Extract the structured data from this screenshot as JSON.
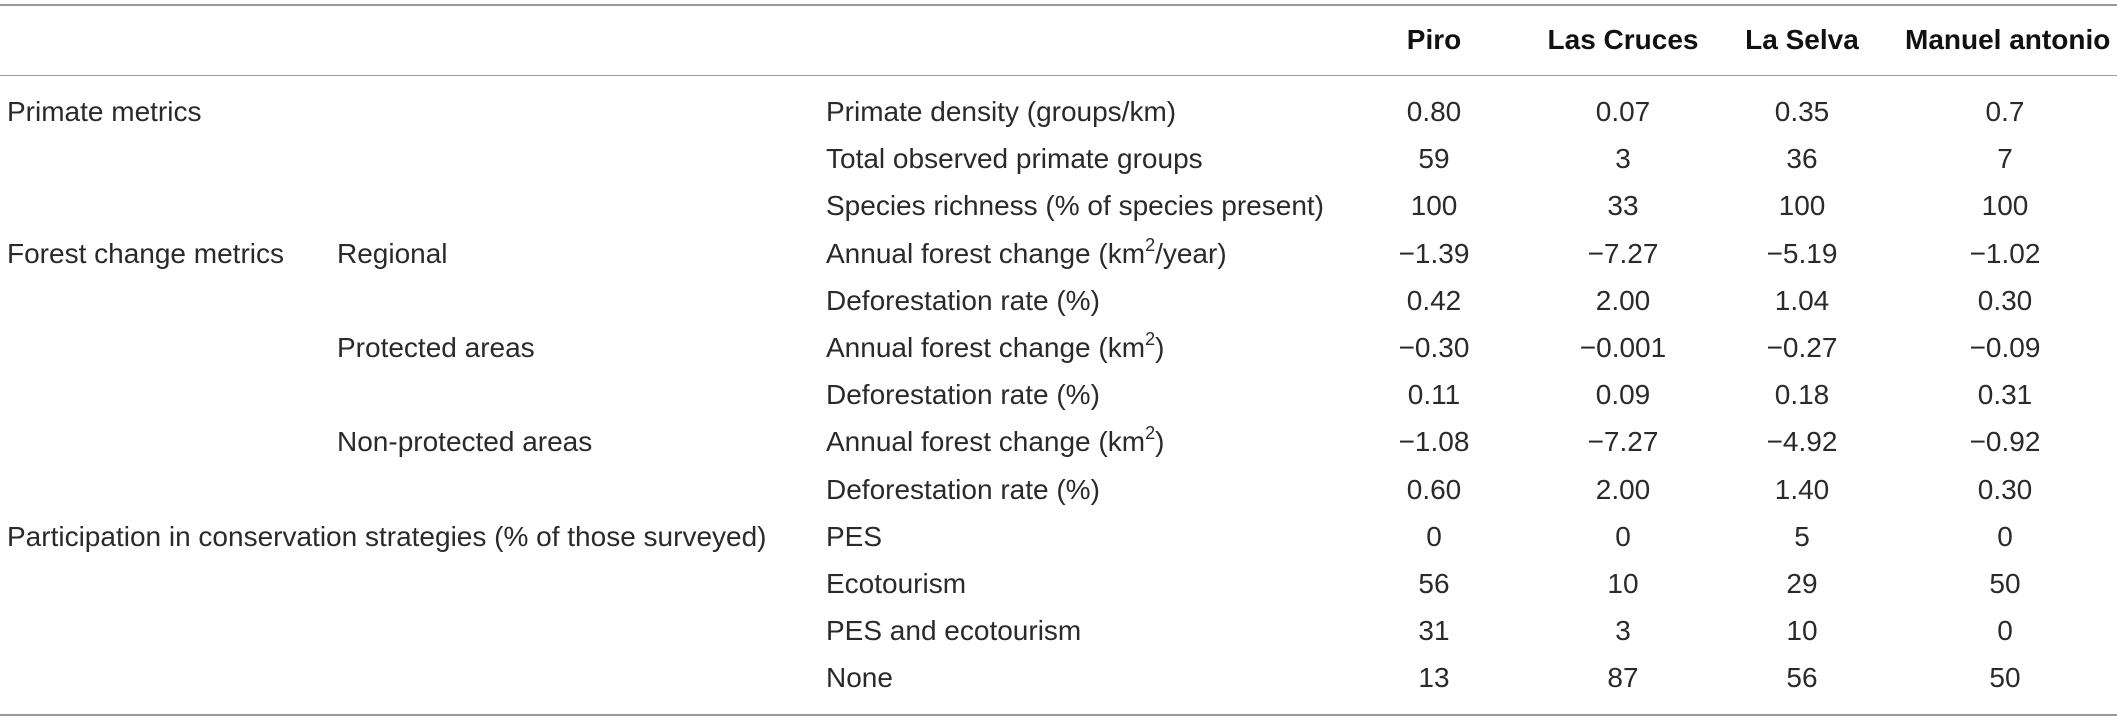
{
  "columns": [
    "Piro",
    "Las Cruces",
    "La Selva",
    "Manuel antonio"
  ],
  "rows": [
    {
      "category": "Primate metrics",
      "subcategory": "",
      "metric": "Primate density (groups/km)",
      "unit_sup": "",
      "metric_suffix": "",
      "values": [
        "0.80",
        "0.07",
        "0.35",
        "0.7"
      ]
    },
    {
      "category": "",
      "subcategory": "",
      "metric": "Total observed primate groups",
      "unit_sup": "",
      "metric_suffix": "",
      "values": [
        "59",
        "3",
        "36",
        "7"
      ]
    },
    {
      "category": "",
      "subcategory": "",
      "metric": "Species richness (% of species present)",
      "unit_sup": "",
      "metric_suffix": "",
      "values": [
        "100",
        "33",
        "100",
        "100"
      ]
    },
    {
      "category": "Forest change metrics",
      "subcategory": "Regional",
      "metric": "Annual forest change (km",
      "unit_sup": "2",
      "metric_suffix": "/year)",
      "values": [
        "−1.39",
        "−7.27",
        "−5.19",
        "−1.02"
      ]
    },
    {
      "category": "",
      "subcategory": "",
      "metric": "Deforestation rate (%)",
      "unit_sup": "",
      "metric_suffix": "",
      "values": [
        "0.42",
        "2.00",
        "1.04",
        "0.30"
      ]
    },
    {
      "category": "",
      "subcategory": "Protected areas",
      "metric": "Annual forest change (km",
      "unit_sup": "2",
      "metric_suffix": ")",
      "values": [
        "−0.30",
        "−0.001",
        "−0.27",
        "−0.09"
      ]
    },
    {
      "category": "",
      "subcategory": "",
      "metric": "Deforestation rate (%)",
      "unit_sup": "",
      "metric_suffix": "",
      "values": [
        "0.11",
        "0.09",
        "0.18",
        "0.31"
      ]
    },
    {
      "category": "",
      "subcategory": "Non-protected areas",
      "metric": "Annual forest change (km",
      "unit_sup": "2",
      "metric_suffix": ")",
      "values": [
        "−1.08",
        "−7.27",
        "−4.92",
        "−0.92"
      ]
    },
    {
      "category": "",
      "subcategory": "",
      "metric": "Deforestation rate (%)",
      "unit_sup": "",
      "metric_suffix": "",
      "values": [
        "0.60",
        "2.00",
        "1.40",
        "0.30"
      ]
    },
    {
      "category": "Participation in conservation strategies (% of those surveyed)",
      "subcategory": "",
      "metric": "PES",
      "unit_sup": "",
      "metric_suffix": "",
      "values": [
        "0",
        "0",
        "5",
        "0"
      ]
    },
    {
      "category": "",
      "subcategory": "",
      "metric": "Ecotourism",
      "unit_sup": "",
      "metric_suffix": "",
      "values": [
        "56",
        "10",
        "29",
        "50"
      ]
    },
    {
      "category": "",
      "subcategory": "",
      "metric": "PES and ecotourism",
      "unit_sup": "",
      "metric_suffix": "",
      "values": [
        "31",
        "3",
        "10",
        "0"
      ]
    },
    {
      "category": "",
      "subcategory": "",
      "metric": "None",
      "unit_sup": "",
      "metric_suffix": "",
      "values": [
        "13",
        "87",
        "56",
        "50"
      ]
    }
  ]
}
